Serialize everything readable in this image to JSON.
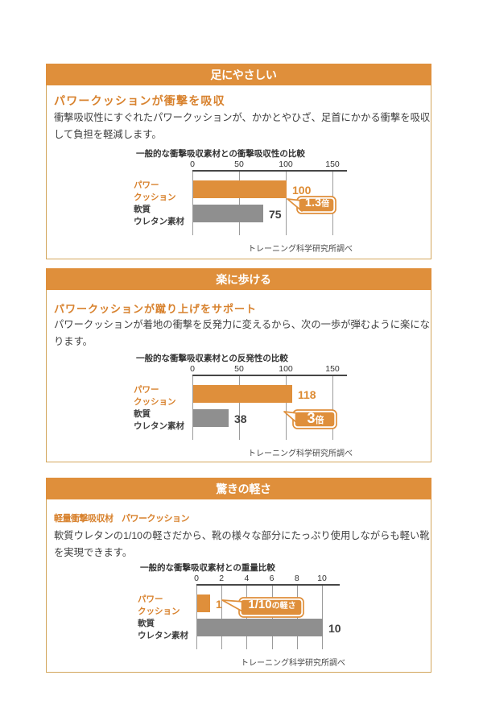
{
  "colors": {
    "orange": "#df8f3b",
    "subtitle_orange": "#d8822e",
    "value_orange": "#dd8b33",
    "body_text": "#3f3f3f",
    "gray_bar": "#8f8f8f",
    "box_border": "#d3a65c",
    "grid_line": "#9b9b9b",
    "axis_line": "#464646",
    "note_text": "#4a4a4a",
    "header_text": "#ffffff"
  },
  "sections": [
    {
      "header": "足にやさしい",
      "subtitle": "パワークッションが衝撃を吸収",
      "body_lines": [
        "衝撃吸収性にすぐれたパワークッションが、かかとやひざ、足首にかかる衝撃を吸収",
        "して負担を軽減します。"
      ],
      "callout": {
        "big": "1.3",
        "small": "倍"
      },
      "note": "トレーニング科学研究所調べ"
    },
    {
      "header": "楽に歩ける",
      "subtitle": "パワークッションが蹴り上げをサポート",
      "body_lines": [
        "パワークッションが着地の衝撃を反発力に変えるから、次の一歩が弾むように楽にな",
        "ります。"
      ],
      "callout": {
        "big": "3",
        "small": "倍"
      },
      "note": "トレーニング科学研究所調べ"
    },
    {
      "header": "驚きの軽さ",
      "subtitle": "軽量衝撃吸収材　パワークッション",
      "body_lines": [
        "軟質ウレタンの1/10の軽さだから、靴の様々な部分にたっぷり使用しながらも軽い靴",
        "を実現できます。"
      ],
      "callout": {
        "big": "1/10",
        "small": "の軽さ"
      },
      "note": "トレーニング科学研究所調べ"
    }
  ],
  "chart_data": [
    {
      "type": "bar",
      "orientation": "horizontal",
      "title": "一般的な衝撃吸収素材との衝撃吸収性の比較",
      "categories": [
        "パワークッション",
        "軟質ウレタン素材"
      ],
      "category_lines": [
        [
          "パワー",
          "クッション"
        ],
        [
          "軟質",
          "ウレタン素材"
        ]
      ],
      "values": [
        100,
        75
      ],
      "value_labels": [
        "100",
        "75"
      ],
      "x_ticks": [
        0,
        50,
        100,
        150
      ],
      "xlim": [
        0,
        165
      ],
      "annotation": "1.3倍",
      "source_note": "トレーニング科学研究所調べ",
      "bar_colors": [
        "#df8f3b",
        "#8f8f8f"
      ],
      "grid": true,
      "legend": false
    },
    {
      "type": "bar",
      "orientation": "horizontal",
      "title": "一般的な衝撃吸収素材との反発性の比較",
      "categories": [
        "パワークッション",
        "軟質ウレタン素材"
      ],
      "category_lines": [
        [
          "パワー",
          "クッション"
        ],
        [
          "軟質",
          "ウレタン素材"
        ]
      ],
      "values": [
        118,
        38
      ],
      "value_labels": [
        "118",
        "38"
      ],
      "x_ticks": [
        0,
        50,
        100,
        150
      ],
      "xlim": [
        0,
        165
      ],
      "annotation": "3倍",
      "source_note": "トレーニング科学研究所調べ",
      "bar_colors": [
        "#df8f3b",
        "#8f8f8f"
      ],
      "grid": true,
      "legend": false
    },
    {
      "type": "bar",
      "orientation": "horizontal",
      "title": "一般的な衝撃吸収素材との重量比較",
      "categories": [
        "パワークッション",
        "軟質ウレタン素材"
      ],
      "category_lines": [
        [
          "パワー",
          "クッション"
        ],
        [
          "軟質",
          "ウレタン素材"
        ]
      ],
      "values": [
        1,
        10
      ],
      "value_labels": [
        "1",
        "10"
      ],
      "x_ticks": [
        0,
        2,
        4,
        6,
        8,
        10
      ],
      "xlim": [
        0,
        11.5
      ],
      "annotation": "1/10の軽さ",
      "source_note": "トレーニング科学研究所調べ",
      "bar_colors": [
        "#df8f3b",
        "#8f8f8f"
      ],
      "grid": true,
      "legend": false
    }
  ]
}
